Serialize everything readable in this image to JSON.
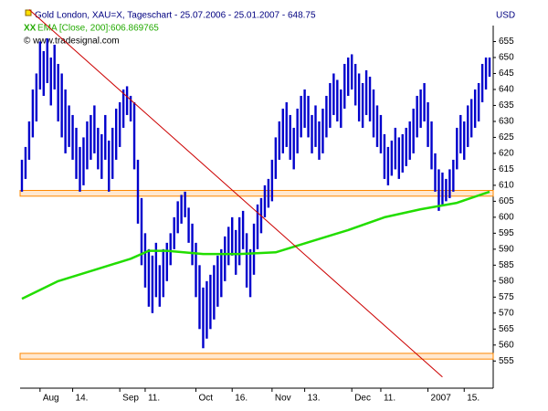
{
  "chart_data": {
    "type": "ohlc",
    "title": "Gold London, XAU=X, Tageschart - 25.07.2006 - 25.01.2007 - 648.75",
    "unit": "USD",
    "copyright": "© www.tradesignal.com",
    "color": "#0000cc",
    "high": [
      618,
      622,
      630,
      640,
      645,
      655,
      652,
      656,
      650,
      654,
      648,
      645,
      640,
      635,
      632,
      628,
      622,
      625,
      630,
      632,
      635,
      628,
      626,
      632,
      624,
      628,
      634,
      636,
      640,
      641,
      638,
      636,
      618,
      606,
      595,
      590,
      588,
      592,
      585,
      590,
      592,
      595,
      600,
      605,
      607,
      608,
      603,
      598,
      592,
      585,
      578,
      580,
      582,
      585,
      588,
      590,
      594,
      597,
      600,
      596,
      600,
      602,
      595,
      590,
      598,
      604,
      606,
      610,
      612,
      618,
      625,
      630,
      634,
      636,
      632,
      628,
      634,
      638,
      640,
      638,
      632,
      635,
      630,
      634,
      638,
      642,
      645,
      643,
      640,
      648,
      650,
      651,
      648,
      645,
      642,
      646,
      644,
      640,
      635,
      632,
      626,
      622,
      624,
      628,
      625,
      626,
      628,
      630,
      634,
      638,
      640,
      642,
      636,
      630,
      620,
      615,
      614,
      612,
      615,
      618,
      628,
      632,
      630,
      635,
      637,
      640,
      642,
      648,
      650,
      650
    ],
    "low": [
      608,
      612,
      618,
      625,
      630,
      640,
      638,
      642,
      635,
      640,
      630,
      625,
      620,
      622,
      618,
      612,
      608,
      610,
      615,
      618,
      620,
      615,
      612,
      618,
      608,
      612,
      618,
      622,
      628,
      632,
      630,
      615,
      598,
      585,
      578,
      572,
      570,
      575,
      572,
      575,
      580,
      585,
      590,
      595,
      598,
      600,
      592,
      585,
      575,
      565,
      559,
      562,
      565,
      568,
      572,
      575,
      580,
      585,
      588,
      582,
      585,
      590,
      578,
      575,
      582,
      590,
      595,
      600,
      603,
      605,
      612,
      618,
      620,
      622,
      618,
      615,
      620,
      625,
      628,
      625,
      620,
      622,
      618,
      620,
      625,
      628,
      632,
      630,
      628,
      634,
      638,
      640,
      635,
      630,
      628,
      632,
      630,
      625,
      622,
      620,
      612,
      610,
      613,
      615,
      612,
      614,
      616,
      618,
      620,
      625,
      628,
      630,
      622,
      615,
      608,
      602,
      604,
      605,
      606,
      608,
      615,
      620,
      618,
      622,
      625,
      628,
      630,
      636,
      640,
      644
    ],
    "series": [
      {
        "name": "EMA [Close, 200]:606.869765",
        "color": "#22dd00",
        "x": [
          0,
          10,
          20,
          30,
          35,
          40,
          50,
          60,
          70,
          80,
          90,
          100,
          110,
          120,
          129
        ],
        "values": [
          574.5,
          580,
          583.5,
          587,
          589.5,
          589.5,
          588.5,
          588.5,
          589,
          592.5,
          596,
          600,
          602.5,
          604.5,
          608
        ]
      }
    ],
    "trendline": {
      "color": "#cc0000",
      "x": [
        2,
        116
      ],
      "values": [
        665,
        550
      ]
    },
    "bands": [
      [
        606.6,
        608.4
      ],
      [
        555.6,
        557.4
      ]
    ],
    "band_color": "#ff8800",
    "xlim": [
      -0.5,
      130
    ],
    "ylim": [
      546.5,
      660
    ],
    "yticks": [
      555,
      560,
      565,
      570,
      575,
      580,
      585,
      590,
      595,
      600,
      605,
      610,
      615,
      620,
      625,
      630,
      635,
      640,
      645,
      650,
      655
    ],
    "xticks": [
      {
        "value": 5,
        "label": "Aug"
      },
      {
        "value": 14,
        "label": "14."
      },
      {
        "value": 27,
        "label": "Sep"
      },
      {
        "value": 34,
        "label": "11."
      },
      {
        "value": 48,
        "label": "Oct"
      },
      {
        "value": 58,
        "label": "16."
      },
      {
        "value": 69,
        "label": "Nov"
      },
      {
        "value": 78,
        "label": "13."
      },
      {
        "value": 91,
        "label": "Dec"
      },
      {
        "value": 99,
        "label": "11."
      },
      {
        "value": 112,
        "label": "2007"
      },
      {
        "value": 122,
        "label": "15."
      }
    ]
  }
}
